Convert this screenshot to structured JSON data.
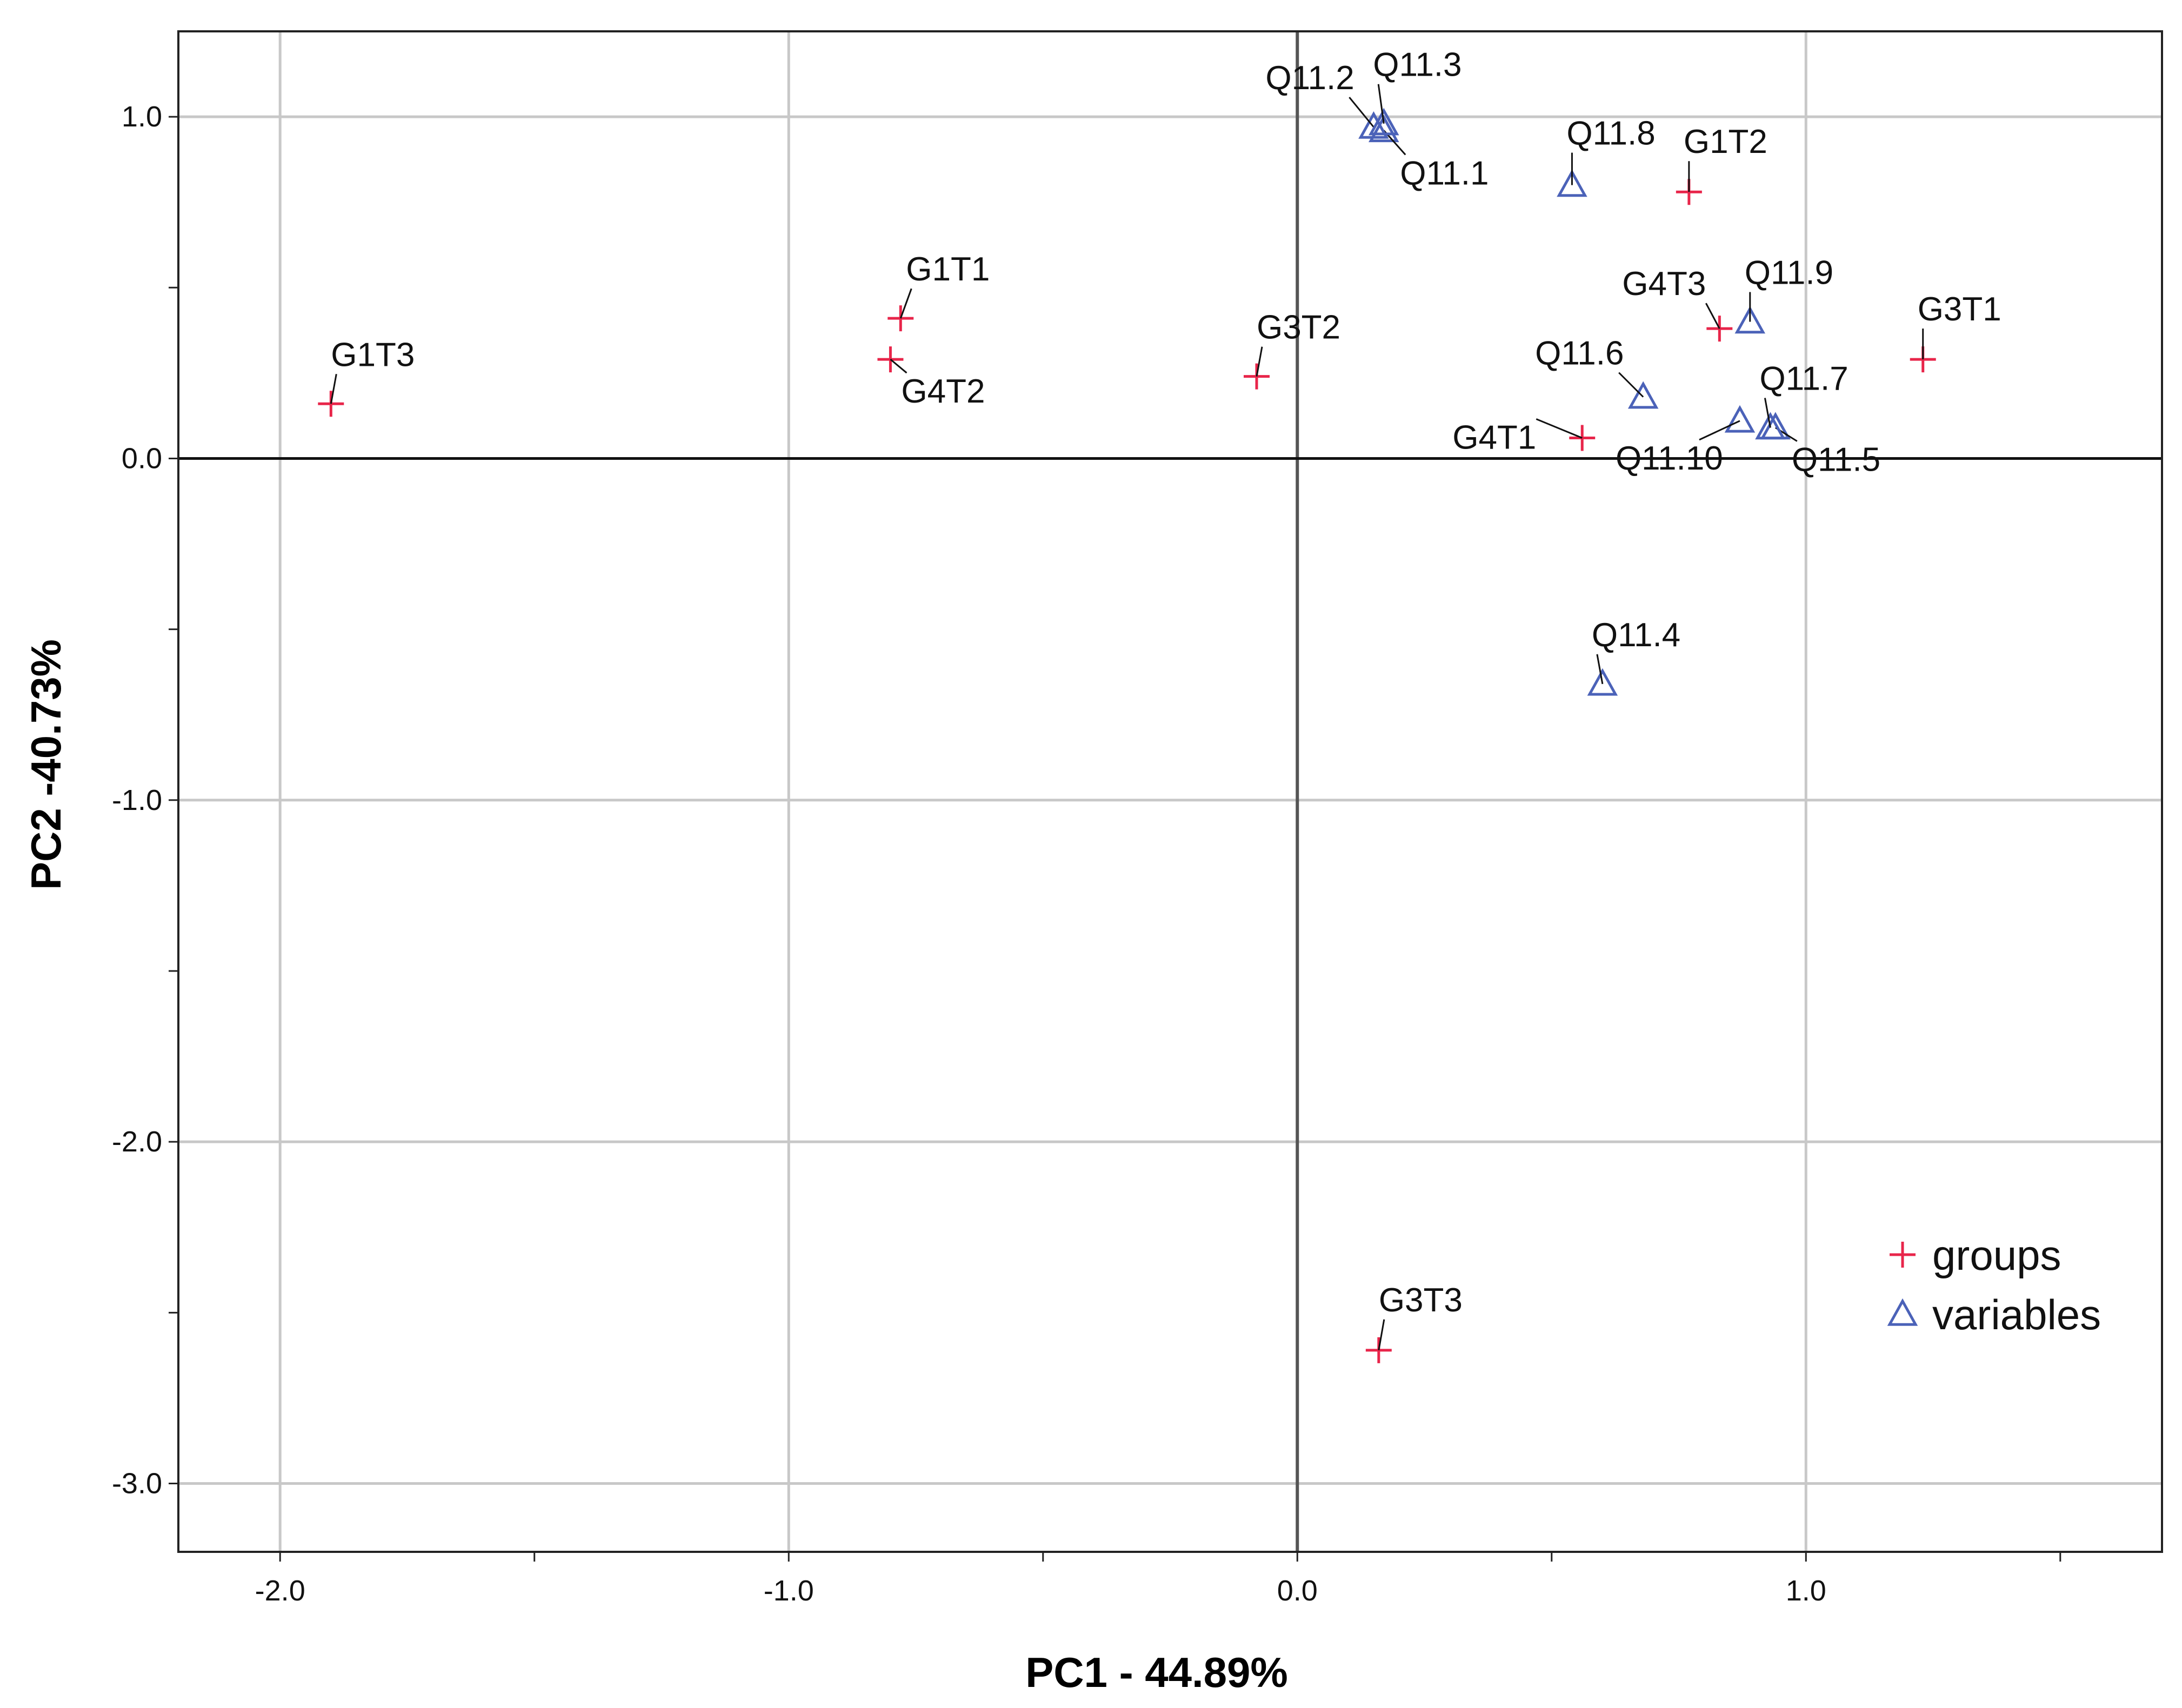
{
  "chart_data": {
    "type": "scatter",
    "xlabel": "PC1 - 44.89%",
    "ylabel": "PC2 -40.73%",
    "xlim": [
      -2.2,
      1.7
    ],
    "ylim": [
      -3.2,
      1.25
    ],
    "x_ticks": [
      -2.0,
      -1.5,
      -1.0,
      -0.5,
      0.0,
      0.5,
      1.0,
      1.5
    ],
    "x_tick_labels": [
      "-2.0",
      "",
      "-1.0",
      "",
      "0.0",
      "",
      "1.0",
      ""
    ],
    "y_ticks": [
      -3.0,
      -2.5,
      -2.0,
      -1.5,
      -1.0,
      -0.5,
      0.0,
      0.5,
      1.0
    ],
    "y_tick_labels": [
      "-3.0",
      "",
      "-2.0",
      "",
      "-1.0",
      "",
      "0.0",
      "",
      "1.0"
    ],
    "grid": true,
    "reference_lines": {
      "x": 0,
      "y": 0
    },
    "legend_position": "bottom-right",
    "series": [
      {
        "name": "groups",
        "marker": "plus",
        "color": "#e8254a",
        "points": [
          {
            "label": "G1T1",
            "x": -0.78,
            "y": 0.41
          },
          {
            "label": "G1T2",
            "x": 0.77,
            "y": 0.78
          },
          {
            "label": "G1T3",
            "x": -1.9,
            "y": 0.16
          },
          {
            "label": "G3T1",
            "x": 1.23,
            "y": 0.29
          },
          {
            "label": "G3T2",
            "x": -0.08,
            "y": 0.24
          },
          {
            "label": "G3T3",
            "x": 0.16,
            "y": -2.61
          },
          {
            "label": "G4T1",
            "x": 0.56,
            "y": 0.06
          },
          {
            "label": "G4T2",
            "x": -0.8,
            "y": 0.29
          },
          {
            "label": "G4T3",
            "x": 0.83,
            "y": 0.38
          }
        ]
      },
      {
        "name": "variables",
        "marker": "triangle",
        "color": "#4b62b8",
        "points": [
          {
            "label": "Q11.1",
            "x": 0.17,
            "y": 0.96
          },
          {
            "label": "Q11.2",
            "x": 0.15,
            "y": 0.97
          },
          {
            "label": "Q11.3",
            "x": 0.17,
            "y": 0.98
          },
          {
            "label": "Q11.4",
            "x": 0.6,
            "y": -0.66
          },
          {
            "label": "Q11.5",
            "x": 0.94,
            "y": 0.09
          },
          {
            "label": "Q11.6",
            "x": 0.68,
            "y": 0.18
          },
          {
            "label": "Q11.7",
            "x": 0.93,
            "y": 0.09
          },
          {
            "label": "Q11.8",
            "x": 0.54,
            "y": 0.8
          },
          {
            "label": "Q11.9",
            "x": 0.89,
            "y": 0.4
          },
          {
            "label": "Q11.10",
            "x": 0.87,
            "y": 0.11
          }
        ]
      }
    ]
  }
}
